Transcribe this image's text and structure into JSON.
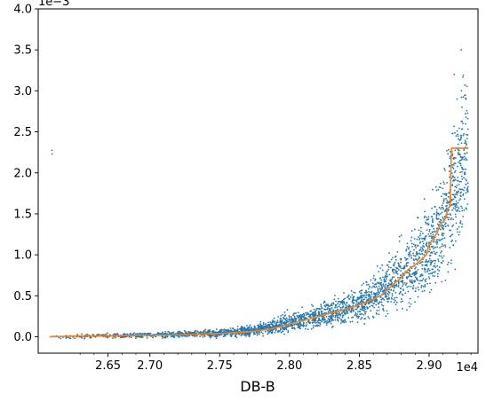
{
  "chart_data": {
    "type": "scatter",
    "title": "",
    "xlabel": "DB-B",
    "ylabel": "",
    "x_offset_label": "1e4",
    "y_offset_label": "1e−3",
    "xlim": [
      26200,
      29350
    ],
    "ylim": [
      -0.0002,
      0.004
    ],
    "x_ticks": [
      26500,
      26600,
      26700,
      26800,
      26900,
      27000,
      27100,
      27200,
      27300,
      27400,
      27500,
      27600,
      27700,
      27800,
      27900,
      28000,
      28100,
      28200,
      28300,
      28400,
      28500,
      28600,
      28700,
      28800,
      28900,
      29000,
      29100,
      29200,
      29300
    ],
    "x_tick_labels": [
      "",
      "",
      "2.65",
      "",
      "",
      "2.70",
      "",
      "",
      "",
      "",
      "2.75",
      "",
      "",
      "",
      "",
      "2.80",
      "",
      "",
      "",
      "",
      "2.85",
      "",
      "",
      "",
      "",
      "2.90",
      "",
      "",
      ""
    ],
    "y_ticks": [
      0.0,
      0.0005,
      0.001,
      0.0015,
      0.002,
      0.0025,
      0.003,
      0.0035,
      0.004
    ],
    "y_tick_labels": [
      "0.0",
      "0.5",
      "1.0",
      "1.5",
      "2.0",
      "2.5",
      "3.0",
      "3.5",
      "4.0"
    ],
    "grid": false,
    "legend": "none",
    "series": [
      {
        "kind": "scatter",
        "color": "#1f77b4",
        "x_range": [
          26280,
          29280
        ],
        "approx_points": 2900,
        "envelope": [
          {
            "x": 26300,
            "center": 0.0,
            "spread": 2e-05
          },
          {
            "x": 27000,
            "center": 2e-05,
            "spread": 3e-05
          },
          {
            "x": 27500,
            "center": 4e-05,
            "spread": 4e-05
          },
          {
            "x": 27800,
            "center": 9e-05,
            "spread": 6e-05
          },
          {
            "x": 28000,
            "center": 0.00018,
            "spread": 0.0001
          },
          {
            "x": 28300,
            "center": 0.00028,
            "spread": 0.00013
          },
          {
            "x": 28500,
            "center": 0.0004,
            "spread": 0.00018
          },
          {
            "x": 28700,
            "center": 0.0006,
            "spread": 0.00025
          },
          {
            "x": 28900,
            "center": 0.0009,
            "spread": 0.0004
          },
          {
            "x": 29050,
            "center": 0.0012,
            "spread": 0.0005
          },
          {
            "x": 29150,
            "center": 0.0017,
            "spread": 0.0007
          },
          {
            "x": 29280,
            "center": 0.0023,
            "spread": 0.0009
          }
        ],
        "peaks": [
          {
            "x": 29230,
            "y": 0.0035
          },
          {
            "x": 29180,
            "y": 0.0032
          },
          {
            "x": 29200,
            "y": 0.0029
          }
        ]
      },
      {
        "kind": "step-line",
        "color": "#ff7f0e",
        "x": [
          26280,
          26500,
          26700,
          26900,
          27100,
          27300,
          27500,
          27700,
          27850,
          27950,
          28050,
          28150,
          28250,
          28350,
          28450,
          28550,
          28650,
          28700,
          28750,
          28800,
          28850,
          28900,
          28950,
          28980,
          29000,
          29030,
          29060,
          29080,
          29100,
          29120,
          29130,
          29150,
          29160,
          29280
        ],
        "y": [
          0.0,
          1e-05,
          1e-05,
          2e-05,
          2e-05,
          3e-05,
          4e-05,
          6e-05,
          9e-05,
          0.00013,
          0.00018,
          0.00022,
          0.00027,
          0.00031,
          0.00036,
          0.00042,
          0.0005,
          0.00057,
          0.00065,
          0.00072,
          0.00082,
          0.00088,
          0.00095,
          0.001,
          0.00112,
          0.0012,
          0.00128,
          0.00138,
          0.0014,
          0.00145,
          0.00155,
          0.0016,
          0.0023,
          0.0023
        ]
      }
    ]
  }
}
